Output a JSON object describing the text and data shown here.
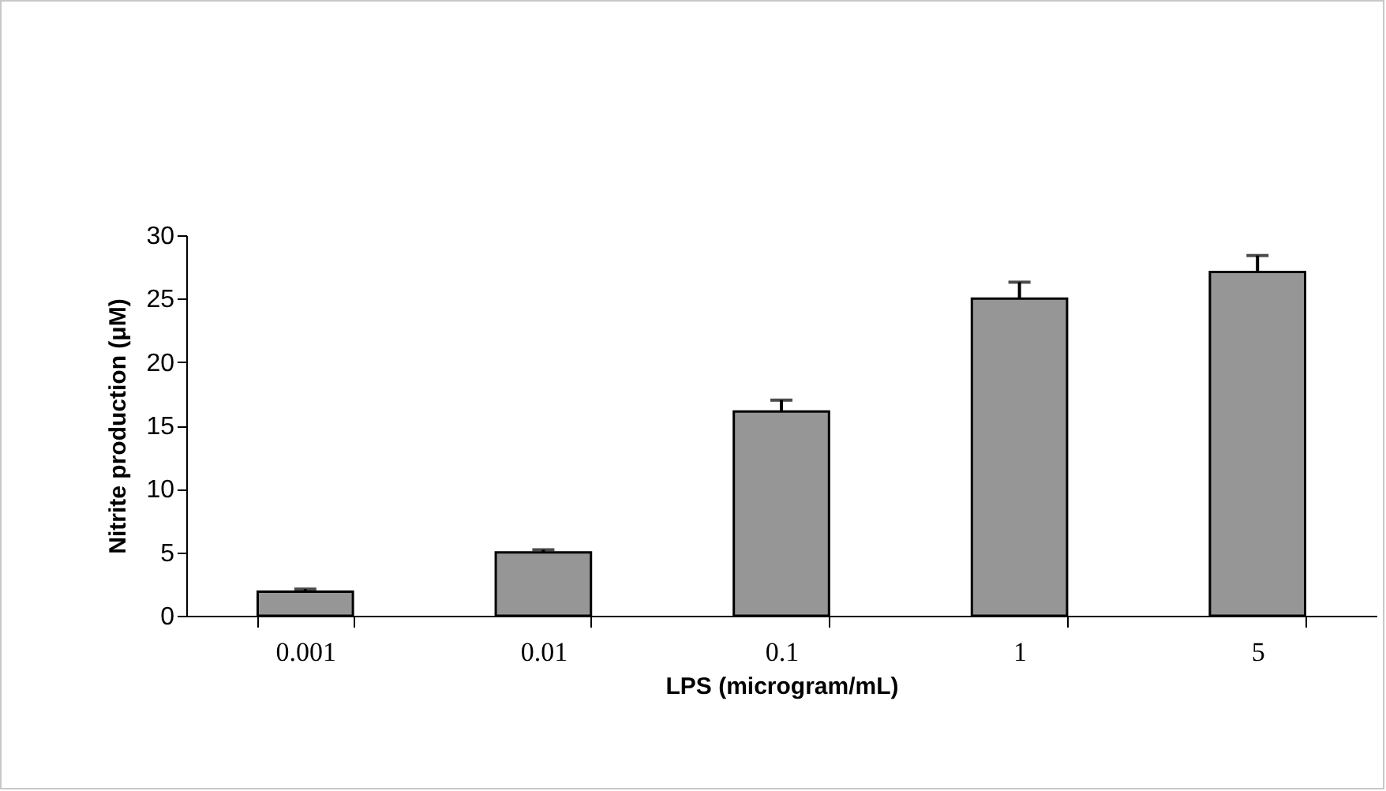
{
  "chart_data": {
    "type": "bar",
    "xlabel": "LPS (microgram/mL)",
    "ylabel": "Nitrite production (μM)",
    "categories": [
      "0.001",
      "0.01",
      "0.1",
      "1",
      "5"
    ],
    "values": [
      1.9,
      5.0,
      16.1,
      25.0,
      27.1
    ],
    "errors": [
      [
        1.9,
        2.1
      ],
      [
        5.0,
        5.2
      ],
      [
        16.1,
        17.0
      ],
      [
        25.0,
        26.3
      ],
      [
        27.1,
        28.4
      ]
    ],
    "color": "#969696",
    "ylim": [
      0,
      30
    ],
    "yticks": [
      0,
      5,
      10,
      15,
      20,
      25,
      30
    ],
    "grid": false
  }
}
